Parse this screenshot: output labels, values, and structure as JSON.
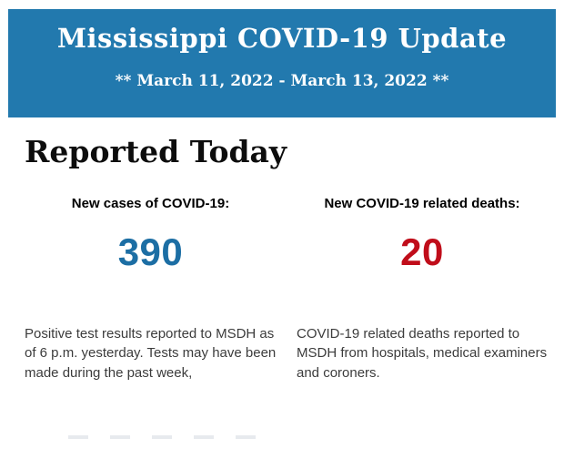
{
  "header": {
    "title": "Mississippi COVID-19 Update",
    "date_range": "** March 11, 2022 - March 13, 2022 **",
    "background_color": "#2279ae",
    "text_color": "#ffffff"
  },
  "section": {
    "heading": "Reported Today"
  },
  "stats": [
    {
      "label": "New cases of COVID-19:",
      "value": "390",
      "value_color": "#1c6ea4",
      "description": "Positive test results reported to MSDH as of 6 p.m. yesterday. Tests may have been made during the past week,"
    },
    {
      "label": "New COVID-19 related deaths:",
      "value": "20",
      "value_color": "#c00d1a",
      "description": "COVID-19 related deaths reported to MSDH from hospitals, medical examiners and coroners."
    }
  ]
}
